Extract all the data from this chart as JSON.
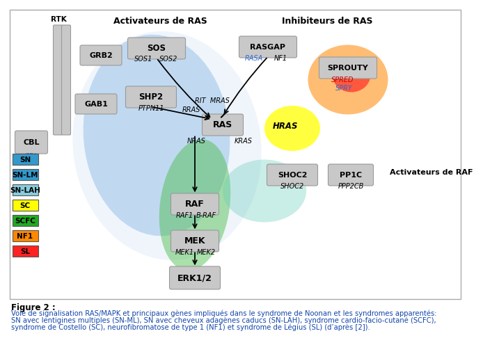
{
  "activateurs_ras_label": "Activateurs de RAS",
  "inhibiteurs_ras_label": "Inhibiteurs de RAS",
  "activateurs_raf_label": "Activateurs de RAF",
  "figure_label": "Figure 2 :",
  "caption_line1": "Voie de signalisation RAS/MAPK et principaux gènes impliqués dans le syndrome de Noonan et les syndromes apparentés:",
  "caption_line2": "SN avec lentigines multiples (SN-ML), SN avec cheveux adagènes caducs (SN-LAH), syndrome cardio-facio-cutané (SCFC),",
  "caption_line3": "syndrome de Costello (SC), neurofibromatose de type 1 (NF1) et syndrome de Légius (SL) (d’après [2]).",
  "legend_items": [
    {
      "label": "SN",
      "color": "#3399cc"
    },
    {
      "label": "SN-LM",
      "color": "#3399cc"
    },
    {
      "label": "SN-LAH",
      "color": "#88ccdd"
    },
    {
      "label": "SC",
      "color": "#ffff00"
    },
    {
      "label": "SCFC",
      "color": "#22aa22"
    },
    {
      "label": "NF1",
      "color": "#ff8800"
    },
    {
      "label": "SL",
      "color": "#ff2222"
    }
  ],
  "bg": "#ffffff",
  "gray_fc": "#c8c8c8",
  "gray_ec": "#999999"
}
